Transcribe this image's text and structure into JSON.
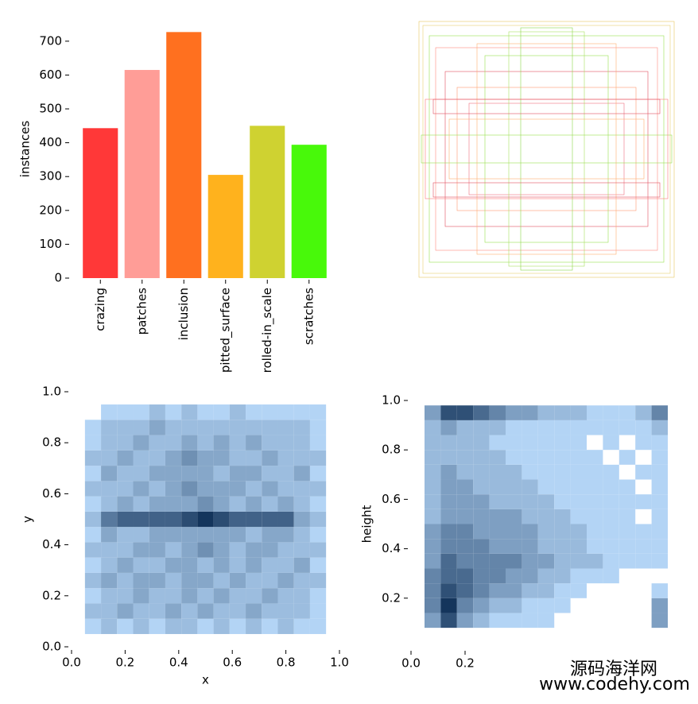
{
  "chart_data": [
    {
      "type": "bar",
      "ylabel": "instances",
      "categories": [
        "crazing",
        "patches",
        "inclusion",
        "pitted_surface",
        "rolled-in_scale",
        "scratches"
      ],
      "values": [
        443,
        615,
        727,
        305,
        450,
        394
      ],
      "colors": [
        "#ff3838",
        "#ff9d97",
        "#ff701f",
        "#ffb21d",
        "#cfd231",
        "#48f90a"
      ],
      "ylim": [
        0,
        763
      ],
      "yticks": [
        0,
        100,
        200,
        300,
        400,
        500,
        600,
        700
      ]
    },
    {
      "type": "histogram2d",
      "xlabel": "x",
      "ylabel": "y",
      "xlim": [
        0,
        1
      ],
      "ylim": [
        0,
        1
      ],
      "xticks": [
        {
          "value": 0,
          "label": "0.0"
        },
        0.2,
        0.4,
        0.6,
        0.8,
        {
          "value": 1,
          "label": "1.0"
        }
      ],
      "yticks": [
        {
          "value": 0,
          "label": "0.0"
        },
        0.2,
        0.4,
        0.6,
        0.8,
        {
          "value": 1,
          "label": "1.0"
        }
      ],
      "colors": [
        "#b3d4f5",
        "#14355c"
      ],
      "xbins": [
        0.05,
        0.11,
        0.17,
        0.23,
        0.29,
        0.35,
        0.41,
        0.47,
        0.53,
        0.59,
        0.65,
        0.71,
        0.77,
        0.83,
        0.89,
        0.95
      ],
      "ybins": [
        0.05,
        0.11,
        0.17,
        0.23,
        0.29,
        0.35,
        0.41,
        0.47,
        0.53,
        0.59,
        0.65,
        0.71,
        0.77,
        0.83,
        0.89,
        0.95
      ],
      "counts": [
        [
          1,
          2,
          1,
          2,
          1,
          2,
          2,
          1,
          2,
          1,
          2,
          1,
          2,
          1,
          1
        ],
        [
          2,
          2,
          3,
          2,
          2,
          3,
          2,
          3,
          2,
          2,
          3,
          2,
          2,
          2,
          1
        ],
        [
          1,
          2,
          2,
          3,
          2,
          2,
          3,
          2,
          3,
          2,
          2,
          3,
          2,
          2,
          1
        ],
        [
          2,
          3,
          2,
          3,
          3,
          2,
          3,
          3,
          2,
          3,
          2,
          2,
          3,
          2,
          2
        ],
        [
          1,
          2,
          3,
          2,
          2,
          3,
          3,
          2,
          3,
          2,
          3,
          2,
          2,
          3,
          1
        ],
        [
          2,
          2,
          2,
          3,
          3,
          2,
          3,
          4,
          3,
          2,
          3,
          3,
          2,
          2,
          2
        ],
        [
          1,
          3,
          2,
          2,
          3,
          3,
          3,
          3,
          3,
          3,
          2,
          3,
          3,
          2,
          1
        ],
        [
          2,
          5,
          6,
          6,
          6,
          6,
          7,
          8,
          7,
          6,
          6,
          6,
          6,
          3,
          2
        ],
        [
          1,
          2,
          3,
          2,
          3,
          3,
          3,
          4,
          3,
          2,
          3,
          2,
          3,
          2,
          1
        ],
        [
          2,
          2,
          2,
          3,
          2,
          3,
          4,
          3,
          3,
          3,
          2,
          3,
          2,
          2,
          2
        ],
        [
          1,
          3,
          2,
          2,
          3,
          3,
          3,
          3,
          2,
          3,
          3,
          2,
          2,
          3,
          1
        ],
        [
          2,
          2,
          3,
          2,
          2,
          3,
          4,
          3,
          3,
          2,
          2,
          3,
          2,
          2,
          2
        ],
        [
          1,
          2,
          2,
          3,
          2,
          2,
          3,
          2,
          3,
          2,
          3,
          2,
          2,
          2,
          1
        ],
        [
          1,
          2,
          2,
          2,
          3,
          2,
          2,
          2,
          2,
          2,
          2,
          2,
          2,
          2,
          1
        ],
        [
          0,
          1,
          1,
          1,
          2,
          1,
          2,
          1,
          1,
          2,
          1,
          1,
          1,
          1,
          1
        ]
      ]
    },
    {
      "type": "histogram2d",
      "ylabel": "height",
      "xlim": [
        0,
        1
      ],
      "ylim": [
        0,
        1
      ],
      "xticks": [
        {
          "value": 0,
          "label": "0.0"
        },
        0.2
      ],
      "yticks": [
        0.2,
        0.4,
        0.6,
        0.8,
        {
          "value": 1,
          "label": "1.0"
        }
      ],
      "colors": [
        "#b3d4f5",
        "#14355c"
      ],
      "xbins": [
        0.05,
        0.11,
        0.17,
        0.23,
        0.29,
        0.35,
        0.41,
        0.47,
        0.53,
        0.59,
        0.65,
        0.71,
        0.77,
        0.83,
        0.89,
        0.95
      ],
      "ybins": [
        0.08,
        0.14,
        0.2,
        0.26,
        0.32,
        0.38,
        0.44,
        0.5,
        0.56,
        0.62,
        0.68,
        0.74,
        0.8,
        0.86,
        0.92,
        0.98
      ],
      "counts": [
        [
          3,
          6,
          3,
          2,
          1,
          1,
          1,
          1,
          0,
          0,
          0,
          0,
          0,
          0,
          3
        ],
        [
          4,
          7,
          4,
          3,
          2,
          2,
          1,
          1,
          1,
          0,
          0,
          0,
          0,
          0,
          3
        ],
        [
          4,
          6,
          5,
          4,
          3,
          3,
          2,
          2,
          1,
          1,
          0,
          0,
          0,
          0,
          1
        ],
        [
          4,
          5,
          5,
          4,
          4,
          3,
          3,
          2,
          2,
          1,
          1,
          1,
          0,
          0,
          0
        ],
        [
          3,
          5,
          4,
          4,
          4,
          4,
          3,
          3,
          2,
          2,
          2,
          1,
          1,
          1,
          1
        ],
        [
          3,
          4,
          4,
          4,
          3,
          3,
          3,
          2,
          2,
          2,
          1,
          1,
          1,
          1,
          1
        ],
        [
          3,
          4,
          4,
          3,
          3,
          3,
          3,
          2,
          2,
          2,
          1,
          1,
          1,
          1,
          1
        ],
        [
          2,
          3,
          3,
          3,
          3,
          3,
          2,
          2,
          2,
          1,
          1,
          1,
          1,
          0,
          1
        ],
        [
          2,
          3,
          3,
          3,
          2,
          2,
          2,
          2,
          1,
          1,
          1,
          1,
          1,
          1,
          1
        ],
        [
          2,
          3,
          3,
          2,
          2,
          2,
          2,
          1,
          1,
          1,
          1,
          1,
          1,
          0,
          1
        ],
        [
          2,
          3,
          2,
          2,
          2,
          2,
          1,
          1,
          1,
          1,
          1,
          1,
          0,
          1,
          1
        ],
        [
          2,
          2,
          2,
          2,
          2,
          1,
          1,
          1,
          1,
          1,
          1,
          0,
          1,
          0,
          1
        ],
        [
          2,
          2,
          2,
          2,
          1,
          1,
          1,
          1,
          1,
          1,
          0,
          1,
          0,
          1,
          1
        ],
        [
          2,
          3,
          2,
          2,
          2,
          1,
          1,
          1,
          1,
          1,
          1,
          1,
          1,
          1,
          2
        ],
        [
          3,
          6,
          6,
          5,
          4,
          3,
          3,
          2,
          2,
          2,
          1,
          1,
          1,
          2,
          4
        ]
      ]
    }
  ],
  "watermark": [
    "源码海洋网",
    "www.codehy.com"
  ]
}
